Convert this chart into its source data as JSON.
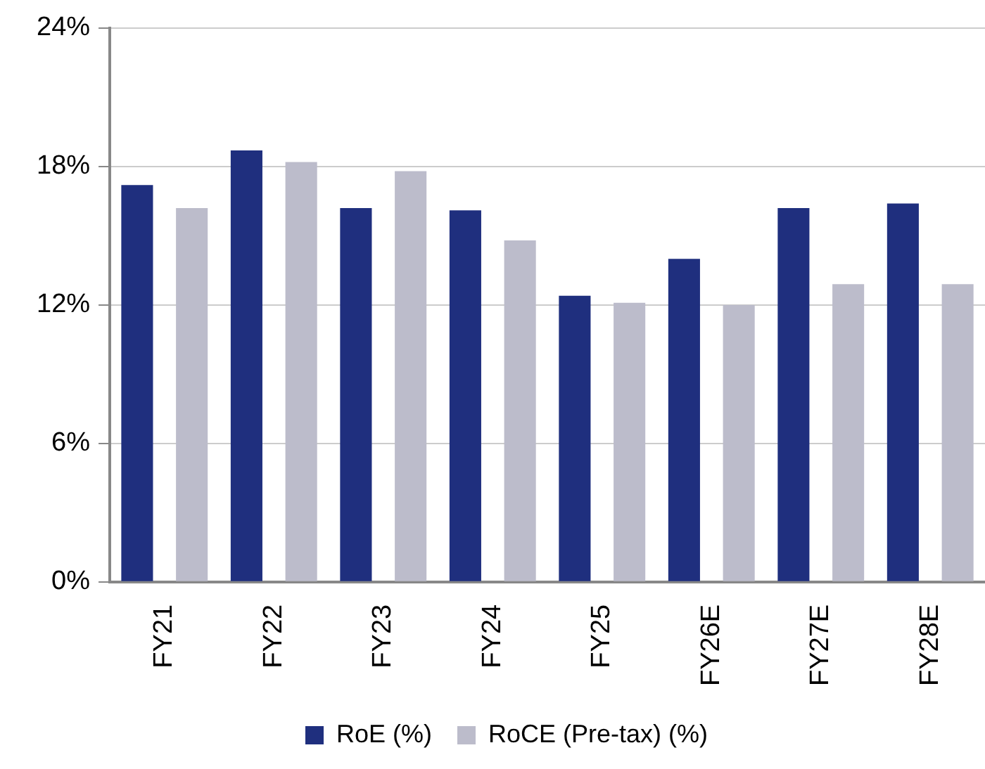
{
  "chart_data": {
    "type": "bar",
    "categories": [
      "FY21",
      "FY22",
      "FY23",
      "FY24",
      "FY25",
      "FY26E",
      "FY27E",
      "FY28E"
    ],
    "series": [
      {
        "name": "RoE (%)",
        "color": "#1f2f7e",
        "values": [
          17.2,
          18.7,
          16.2,
          16.1,
          12.4,
          14.0,
          16.2,
          16.4
        ]
      },
      {
        "name": "RoCE (Pre-tax) (%)",
        "color": "#bcbccb",
        "values": [
          16.2,
          18.2,
          17.8,
          14.8,
          12.1,
          12.0,
          12.9,
          12.9
        ]
      }
    ],
    "ylim": [
      0,
      24
    ],
    "yticks": [
      {
        "value": 0,
        "label": "0%"
      },
      {
        "value": 6,
        "label": "6%"
      },
      {
        "value": 12,
        "label": "12%"
      },
      {
        "value": 18,
        "label": "18%"
      },
      {
        "value": 24,
        "label": "24%"
      }
    ],
    "grid": "y",
    "legend": "bottom"
  }
}
